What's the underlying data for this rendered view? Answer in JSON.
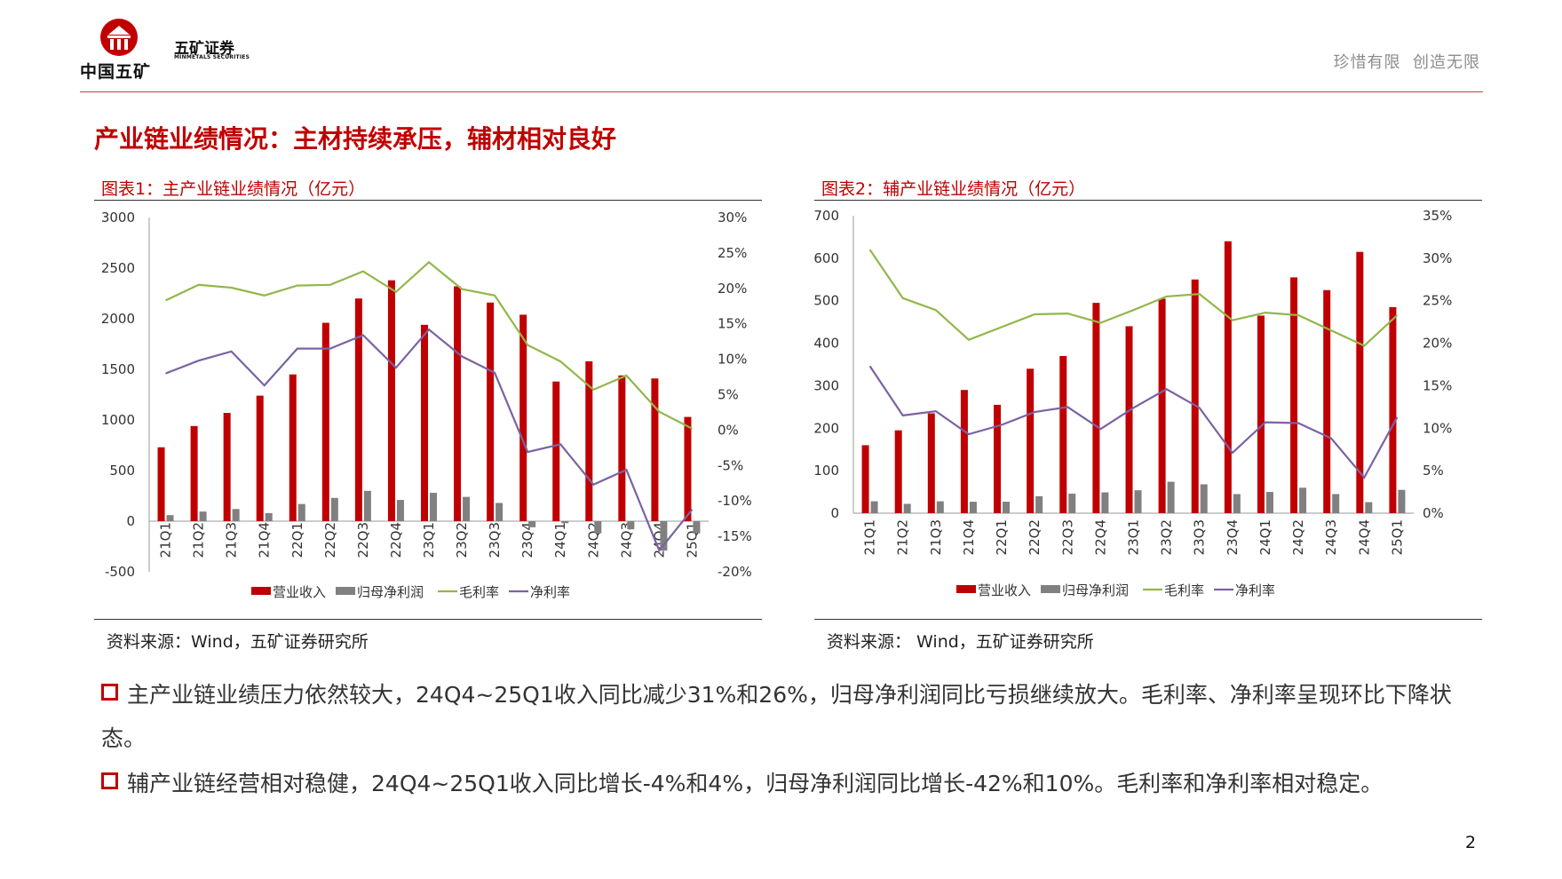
{
  "header": {
    "logo_main": "中国五矿",
    "company_cn": "五矿证券",
    "company_en": "MINMETALS SECURITIES",
    "slogan": "珍惜有限  创造无限"
  },
  "page": {
    "title": "产业链业绩情况：主材持续承压，辅材相对良好",
    "number": "2"
  },
  "colors": {
    "brand_red": "#c00000",
    "bar_revenue": "#c00000",
    "bar_profit": "#808080",
    "line_gross": "#92b74a",
    "line_net": "#7b62a3"
  },
  "figure1": {
    "title": "图表1：主产业链业绩情况（亿元）",
    "source": "资料来源：Wind，五矿证券研究所"
  },
  "figure2": {
    "title": "图表2：辅产业链业绩情况（亿元）",
    "source": "资料来源： Wind，五矿证券研究所"
  },
  "chart_data": [
    {
      "type": "bar",
      "title": "图表1：主产业链业绩情况（亿元）",
      "categories": [
        "21Q1",
        "21Q2",
        "21Q3",
        "21Q4",
        "22Q1",
        "22Q2",
        "22Q3",
        "22Q4",
        "23Q1",
        "23Q2",
        "23Q3",
        "23Q4",
        "24Q1",
        "24Q2",
        "24Q3",
        "24Q4",
        "25Q1"
      ],
      "ylim": [
        -500,
        3000
      ],
      "yticks": [
        "3000",
        "2500",
        "2000",
        "1500",
        "1000",
        "500",
        "0",
        "-500"
      ],
      "y2lim": [
        -0.2,
        0.3
      ],
      "y2ticks": [
        "30%",
        "25%",
        "20%",
        "15%",
        "10%",
        "5%",
        "0%",
        "-5%",
        "-10%",
        "-15%",
        "-20%"
      ],
      "series": [
        {
          "name": "营业收入",
          "kind": "bar",
          "axis": "left",
          "values": [
            730,
            940,
            1070,
            1240,
            1450,
            1960,
            2200,
            2380,
            1940,
            2320,
            2160,
            2040,
            1380,
            1580,
            1440,
            1410,
            1030
          ]
        },
        {
          "name": "归母净利润",
          "kind": "bar",
          "axis": "left",
          "values": [
            60,
            95,
            120,
            80,
            170,
            230,
            300,
            210,
            280,
            240,
            180,
            -60,
            -20,
            -120,
            -80,
            -290,
            -120
          ]
        },
        {
          "name": "毛利率",
          "kind": "line",
          "axis": "right",
          "values": [
            0.183,
            0.205,
            0.201,
            0.19,
            0.204,
            0.205,
            0.224,
            0.195,
            0.237,
            0.199,
            0.19,
            0.12,
            0.097,
            0.057,
            0.077,
            0.026,
            0.002
          ]
        },
        {
          "name": "净利率",
          "kind": "line",
          "axis": "right",
          "values": [
            0.08,
            0.098,
            0.111,
            0.063,
            0.115,
            0.115,
            0.134,
            0.088,
            0.142,
            0.104,
            0.081,
            -0.031,
            -0.02,
            -0.077,
            -0.056,
            -0.17,
            -0.112
          ]
        }
      ],
      "legend": [
        "营业收入",
        "归母净利润",
        "毛利率",
        "净利率"
      ],
      "legend_position": "bottom"
    },
    {
      "type": "bar",
      "title": "图表2：辅产业链业绩情况（亿元）",
      "categories": [
        "21Q1",
        "21Q2",
        "21Q3",
        "21Q4",
        "22Q1",
        "22Q2",
        "22Q3",
        "22Q4",
        "23Q1",
        "23Q2",
        "23Q3",
        "23Q4",
        "24Q1",
        "24Q2",
        "24Q3",
        "24Q4",
        "25Q1"
      ],
      "ylim": [
        0,
        700
      ],
      "yticks": [
        "700",
        "600",
        "500",
        "400",
        "300",
        "200",
        "100",
        "0"
      ],
      "y2lim": [
        0,
        0.35
      ],
      "y2ticks": [
        "35%",
        "30%",
        "25%",
        "20%",
        "15%",
        "10%",
        "5%",
        "0%"
      ],
      "series": [
        {
          "name": "营业收入",
          "kind": "bar",
          "axis": "left",
          "values": [
            160,
            195,
            235,
            290,
            255,
            340,
            370,
            495,
            440,
            505,
            550,
            640,
            465,
            555,
            525,
            615,
            485
          ]
        },
        {
          "name": "归母净利润",
          "kind": "bar",
          "axis": "left",
          "values": [
            28,
            22,
            28,
            27,
            27,
            40,
            46,
            49,
            54,
            74,
            68,
            45,
            50,
            60,
            45,
            26,
            55
          ]
        },
        {
          "name": "毛利率",
          "kind": "line",
          "axis": "right",
          "values": [
            0.31,
            0.253,
            0.239,
            0.204,
            0.219,
            0.234,
            0.235,
            0.224,
            0.239,
            0.255,
            0.258,
            0.227,
            0.236,
            0.233,
            0.215,
            0.197,
            0.233
          ]
        },
        {
          "name": "净利率",
          "kind": "line",
          "axis": "right",
          "values": [
            0.173,
            0.115,
            0.12,
            0.093,
            0.104,
            0.119,
            0.125,
            0.099,
            0.124,
            0.146,
            0.124,
            0.071,
            0.107,
            0.106,
            0.088,
            0.042,
            0.113
          ]
        }
      ],
      "legend": [
        "营业收入",
        "归母净利润",
        "毛利率",
        "净利率"
      ],
      "legend_position": "bottom"
    }
  ],
  "bullets": [
    "主产业链业绩压力依然较大，24Q4~25Q1收入同比减少31%和26%，归母净利润同比亏损继续放大。毛利率、净利率呈现环比下降状态。",
    "辅产业链经营相对稳健，24Q4~25Q1收入同比增长-4%和4%，归母净利润同比增长-42%和10%。毛利率和净利率相对稳定。"
  ]
}
